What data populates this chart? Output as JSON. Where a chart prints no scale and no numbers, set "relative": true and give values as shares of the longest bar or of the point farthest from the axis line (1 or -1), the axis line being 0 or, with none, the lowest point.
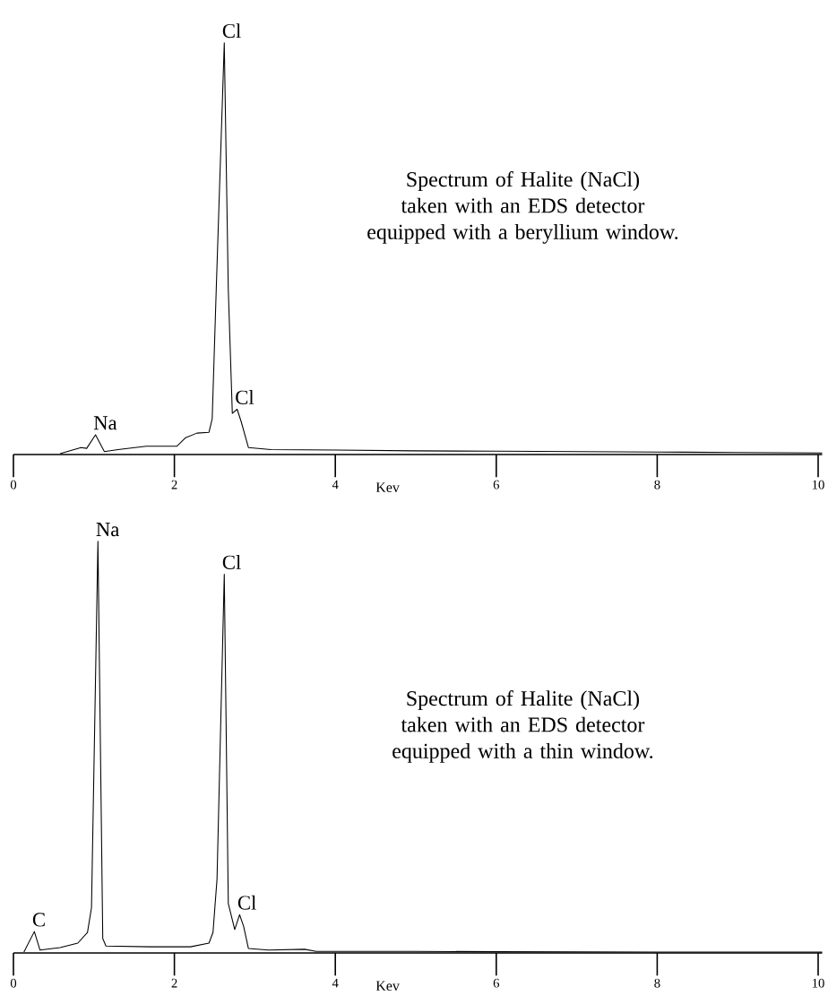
{
  "chart_data": [
    {
      "type": "line",
      "title": "Spectrum of Halite (NaCl)",
      "subtitle": "taken with an EDS detector equipped with a beryllium window.",
      "xlabel": "Kev",
      "relative": true,
      "xlim": [
        0,
        10.05
      ],
      "xticks": [
        0,
        2,
        4,
        6,
        8,
        10
      ],
      "series": [
        {
          "color": "#000000",
          "x": [
            0.58,
            0.84,
            0.91,
            1.02,
            1.13,
            1.3,
            1.65,
            2.03,
            2.14,
            2.28,
            2.43,
            2.47,
            2.52,
            2.62,
            2.67,
            2.72,
            2.78,
            2.83,
            2.92,
            3.2,
            4.0,
            4.96,
            6.0,
            7.0,
            8.0,
            9.0,
            10.05
          ],
          "values": [
            0.002,
            0.017,
            0.015,
            0.048,
            0.007,
            0.012,
            0.02,
            0.02,
            0.041,
            0.052,
            0.054,
            0.087,
            0.4,
            1.0,
            0.4,
            0.1,
            0.11,
            0.08,
            0.017,
            0.012,
            0.011,
            0.009,
            0.008,
            0.007,
            0.006,
            0.005,
            0.004
          ]
        }
      ],
      "annotations": [
        {
          "text": "Na",
          "x": 1.02,
          "y": 0.048
        },
        {
          "text": "Cl",
          "x": 2.62,
          "y": 1.0
        },
        {
          "text": "Cl",
          "x": 2.78,
          "y": 0.11
        }
      ]
    },
    {
      "type": "line",
      "title": "Spectrum of  Halite (NaCl)",
      "subtitle": "taken with an EDS detector equipped with a thin window.",
      "xlabel": "Kev",
      "relative": true,
      "xlim": [
        0,
        10.05
      ],
      "xticks": [
        0,
        2,
        4,
        6,
        8,
        10
      ],
      "series": [
        {
          "color": "#000000",
          "x": [
            0.13,
            0.26,
            0.33,
            0.58,
            0.8,
            0.92,
            0.97,
            1.05,
            1.11,
            1.15,
            1.69,
            2.2,
            2.43,
            2.48,
            2.53,
            2.62,
            2.67,
            2.75,
            2.81,
            2.86,
            2.92,
            3.17,
            3.62,
            3.76,
            4.96,
            6.0,
            8.0,
            10.05
          ],
          "values": [
            0.002,
            0.052,
            0.007,
            0.013,
            0.024,
            0.05,
            0.11,
            1.0,
            0.035,
            0.017,
            0.015,
            0.015,
            0.024,
            0.05,
            0.18,
            0.92,
            0.12,
            0.057,
            0.093,
            0.065,
            0.011,
            0.007,
            0.009,
            0.004,
            0.004,
            0.003,
            0.002,
            0.002
          ]
        }
      ],
      "annotations": [
        {
          "text": "C",
          "x": 0.26,
          "y": 0.052
        },
        {
          "text": "Na",
          "x": 1.05,
          "y": 1.0
        },
        {
          "text": "Cl",
          "x": 2.62,
          "y": 0.92
        },
        {
          "text": "Cl",
          "x": 2.81,
          "y": 0.093
        }
      ]
    }
  ]
}
